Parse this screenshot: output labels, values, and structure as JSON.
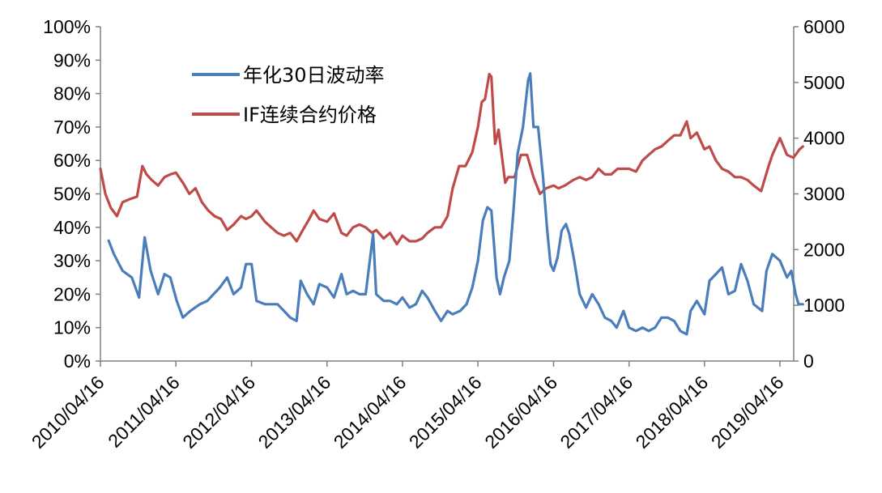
{
  "chart_data": {
    "type": "line",
    "title": "",
    "xlabel": "",
    "ylabel": "",
    "grid": false,
    "legend_position": "top-left",
    "x_ticks": [
      "2010/04/16",
      "2011/04/16",
      "2012/04/16",
      "2013/04/16",
      "2014/04/16",
      "2015/04/16",
      "2016/04/16",
      "2017/04/16",
      "2018/04/16",
      "2019/04/16"
    ],
    "y_left": {
      "range": [
        0,
        100
      ],
      "ticks": [
        "0%",
        "10%",
        "20%",
        "30%",
        "40%",
        "50%",
        "60%",
        "70%",
        "80%",
        "90%",
        "100%"
      ]
    },
    "y_right": {
      "range": [
        0,
        6000
      ],
      "ticks": [
        "0",
        "1000",
        "2000",
        "3000",
        "4000",
        "5000",
        "6000"
      ]
    },
    "series": [
      {
        "name": "年化30日波动率",
        "axis": "left",
        "color": "#4a7ebb",
        "points": [
          [
            "2010/05/26",
            36
          ],
          [
            "2010/06/20",
            32
          ],
          [
            "2010/08/01",
            27
          ],
          [
            "2010/09/15",
            25
          ],
          [
            "2010/10/20",
            19
          ],
          [
            "2010/11/16",
            37
          ],
          [
            "2010/12/15",
            27
          ],
          [
            "2011/01/20",
            20
          ],
          [
            "2011/02/20",
            26
          ],
          [
            "2011/03/20",
            25
          ],
          [
            "2011/04/20",
            18
          ],
          [
            "2011/05/20",
            13
          ],
          [
            "2011/06/25",
            15
          ],
          [
            "2011/08/10",
            17
          ],
          [
            "2011/09/15",
            18
          ],
          [
            "2011/10/15",
            20
          ],
          [
            "2011/11/15",
            22
          ],
          [
            "2011/12/20",
            25
          ],
          [
            "2012/01/20",
            20
          ],
          [
            "2012/02/25",
            22
          ],
          [
            "2012/03/20",
            29
          ],
          [
            "2012/04/16",
            29
          ],
          [
            "2012/05/10",
            18
          ],
          [
            "2012/06/20",
            17
          ],
          [
            "2012/08/20",
            17
          ],
          [
            "2012/09/20",
            15
          ],
          [
            "2012/10/20",
            13
          ],
          [
            "2012/11/20",
            12
          ],
          [
            "2012/12/10",
            24
          ],
          [
            "2013/01/10",
            20
          ],
          [
            "2013/02/10",
            17
          ],
          [
            "2013/03/10",
            23
          ],
          [
            "2013/04/16",
            22
          ],
          [
            "2013/05/20",
            19
          ],
          [
            "2013/06/25",
            26
          ],
          [
            "2013/07/20",
            20
          ],
          [
            "2013/08/20",
            21
          ],
          [
            "2013/09/20",
            20
          ],
          [
            "2013/10/20",
            20
          ],
          [
            "2013/11/15",
            33
          ],
          [
            "2013/11/25",
            38
          ],
          [
            "2013/12/10",
            20
          ],
          [
            "2014/01/15",
            18
          ],
          [
            "2014/02/15",
            18
          ],
          [
            "2014/03/20",
            17
          ],
          [
            "2014/04/16",
            19
          ],
          [
            "2014/05/20",
            16
          ],
          [
            "2014/06/20",
            17
          ],
          [
            "2014/07/20",
            21
          ],
          [
            "2014/08/15",
            19
          ],
          [
            "2014/09/20",
            15
          ],
          [
            "2014/10/20",
            12
          ],
          [
            "2014/11/20",
            15
          ],
          [
            "2014/12/15",
            14
          ],
          [
            "2015/01/20",
            15
          ],
          [
            "2015/02/20",
            17
          ],
          [
            "2015/03/20",
            22
          ],
          [
            "2015/04/16",
            30
          ],
          [
            "2015/05/10",
            42
          ],
          [
            "2015/06/01",
            46
          ],
          [
            "2015/06/20",
            45
          ],
          [
            "2015/07/15",
            25
          ],
          [
            "2015/08/01",
            20
          ],
          [
            "2015/08/20",
            25
          ],
          [
            "2015/09/15",
            30
          ],
          [
            "2015/10/05",
            45
          ],
          [
            "2015/10/25",
            62
          ],
          [
            "2015/11/20",
            70
          ],
          [
            "2015/12/15",
            84
          ],
          [
            "2015/12/25",
            86
          ],
          [
            "2016/01/10",
            70
          ],
          [
            "2016/02/01",
            70
          ],
          [
            "2016/02/25",
            55
          ],
          [
            "2016/03/15",
            40
          ],
          [
            "2016/04/01",
            29
          ],
          [
            "2016/04/16",
            27
          ],
          [
            "2016/05/05",
            31
          ],
          [
            "2016/05/25",
            39
          ],
          [
            "2016/06/15",
            41
          ],
          [
            "2016/07/01",
            38
          ],
          [
            "2016/07/25",
            30
          ],
          [
            "2016/08/20",
            20
          ],
          [
            "2016/09/20",
            16
          ],
          [
            "2016/10/20",
            20
          ],
          [
            "2016/11/20",
            17
          ],
          [
            "2016/12/20",
            13
          ],
          [
            "2017/01/20",
            12
          ],
          [
            "2017/02/15",
            10
          ],
          [
            "2017/03/20",
            15
          ],
          [
            "2017/04/16",
            10
          ],
          [
            "2017/05/20",
            9
          ],
          [
            "2017/06/20",
            10
          ],
          [
            "2017/07/20",
            9
          ],
          [
            "2017/08/20",
            10
          ],
          [
            "2017/09/20",
            13
          ],
          [
            "2017/10/20",
            13
          ],
          [
            "2017/11/20",
            12
          ],
          [
            "2017/12/20",
            9
          ],
          [
            "2018/01/20",
            8
          ],
          [
            "2018/02/08",
            15
          ],
          [
            "2018/03/10",
            18
          ],
          [
            "2018/04/16",
            14
          ],
          [
            "2018/05/10",
            24
          ],
          [
            "2018/06/10",
            26
          ],
          [
            "2018/07/10",
            28
          ],
          [
            "2018/08/10",
            20
          ],
          [
            "2018/09/10",
            21
          ],
          [
            "2018/10/10",
            29
          ],
          [
            "2018/11/10",
            24
          ],
          [
            "2018/12/10",
            17
          ],
          [
            "2019/01/20",
            15
          ],
          [
            "2019/02/10",
            27
          ],
          [
            "2019/03/10",
            32
          ],
          [
            "2019/04/16",
            30
          ],
          [
            "2019/05/20",
            25
          ],
          [
            "2019/06/10",
            27
          ],
          [
            "2019/07/01",
            20
          ],
          [
            "2019/07/15",
            17
          ],
          [
            "2019/08/05",
            17
          ]
        ]
      },
      {
        "name": "IF连续合约价格",
        "axis": "right",
        "color": "#be4b48",
        "points": [
          [
            "2010/04/16",
            3450
          ],
          [
            "2010/05/10",
            3000
          ],
          [
            "2010/06/05",
            2750
          ],
          [
            "2010/07/05",
            2600
          ],
          [
            "2010/08/01",
            2850
          ],
          [
            "2010/09/01",
            2900
          ],
          [
            "2010/10/10",
            2950
          ],
          [
            "2010/11/05",
            3500
          ],
          [
            "2010/11/25",
            3350
          ],
          [
            "2010/12/20",
            3250
          ],
          [
            "2011/01/20",
            3150
          ],
          [
            "2011/02/20",
            3300
          ],
          [
            "2011/03/20",
            3350
          ],
          [
            "2011/04/16",
            3380
          ],
          [
            "2011/05/20",
            3200
          ],
          [
            "2011/06/20",
            3000
          ],
          [
            "2011/07/20",
            3100
          ],
          [
            "2011/08/20",
            2850
          ],
          [
            "2011/09/20",
            2700
          ],
          [
            "2011/10/20",
            2600
          ],
          [
            "2011/11/20",
            2550
          ],
          [
            "2011/12/20",
            2350
          ],
          [
            "2012/01/20",
            2450
          ],
          [
            "2012/02/25",
            2600
          ],
          [
            "2012/03/20",
            2550
          ],
          [
            "2012/04/16",
            2600
          ],
          [
            "2012/05/10",
            2700
          ],
          [
            "2012/06/20",
            2500
          ],
          [
            "2012/07/20",
            2400
          ],
          [
            "2012/08/20",
            2300
          ],
          [
            "2012/09/20",
            2250
          ],
          [
            "2012/10/20",
            2300
          ],
          [
            "2012/11/20",
            2150
          ],
          [
            "2012/12/20",
            2350
          ],
          [
            "2013/01/20",
            2550
          ],
          [
            "2013/02/10",
            2700
          ],
          [
            "2013/03/10",
            2550
          ],
          [
            "2013/04/16",
            2500
          ],
          [
            "2013/05/20",
            2650
          ],
          [
            "2013/06/25",
            2300
          ],
          [
            "2013/07/20",
            2250
          ],
          [
            "2013/08/20",
            2400
          ],
          [
            "2013/09/20",
            2450
          ],
          [
            "2013/10/20",
            2400
          ],
          [
            "2013/11/20",
            2300
          ],
          [
            "2013/12/10",
            2350
          ],
          [
            "2014/01/15",
            2200
          ],
          [
            "2014/02/15",
            2300
          ],
          [
            "2014/03/20",
            2100
          ],
          [
            "2014/04/16",
            2250
          ],
          [
            "2014/05/20",
            2150
          ],
          [
            "2014/06/20",
            2150
          ],
          [
            "2014/07/20",
            2200
          ],
          [
            "2014/08/15",
            2300
          ],
          [
            "2014/09/20",
            2400
          ],
          [
            "2014/10/20",
            2400
          ],
          [
            "2014/11/20",
            2600
          ],
          [
            "2014/12/15",
            3100
          ],
          [
            "2015/01/15",
            3500
          ],
          [
            "2015/02/15",
            3500
          ],
          [
            "2015/03/20",
            3750
          ],
          [
            "2015/04/16",
            4200
          ],
          [
            "2015/05/05",
            4650
          ],
          [
            "2015/05/20",
            4700
          ],
          [
            "2015/06/10",
            5150
          ],
          [
            "2015/06/20",
            5100
          ],
          [
            "2015/07/08",
            3900
          ],
          [
            "2015/07/25",
            4150
          ],
          [
            "2015/08/26",
            3200
          ],
          [
            "2015/09/10",
            3300
          ],
          [
            "2015/10/10",
            3300
          ],
          [
            "2015/11/10",
            3700
          ],
          [
            "2015/12/10",
            3700
          ],
          [
            "2016/01/10",
            3300
          ],
          [
            "2016/02/10",
            3000
          ],
          [
            "2016/03/10",
            3100
          ],
          [
            "2016/04/16",
            3150
          ],
          [
            "2016/05/10",
            3100
          ],
          [
            "2016/06/10",
            3150
          ],
          [
            "2016/07/20",
            3250
          ],
          [
            "2016/08/20",
            3300
          ],
          [
            "2016/09/20",
            3250
          ],
          [
            "2016/10/20",
            3300
          ],
          [
            "2016/11/20",
            3450
          ],
          [
            "2016/12/20",
            3350
          ],
          [
            "2017/01/20",
            3350
          ],
          [
            "2017/02/20",
            3450
          ],
          [
            "2017/03/20",
            3450
          ],
          [
            "2017/04/16",
            3450
          ],
          [
            "2017/05/20",
            3400
          ],
          [
            "2017/06/20",
            3600
          ],
          [
            "2017/07/20",
            3700
          ],
          [
            "2017/08/20",
            3800
          ],
          [
            "2017/09/20",
            3850
          ],
          [
            "2017/10/20",
            3950
          ],
          [
            "2017/11/20",
            4050
          ],
          [
            "2017/12/20",
            4050
          ],
          [
            "2018/01/20",
            4300
          ],
          [
            "2018/02/08",
            4000
          ],
          [
            "2018/03/10",
            4100
          ],
          [
            "2018/04/16",
            3800
          ],
          [
            "2018/05/10",
            3850
          ],
          [
            "2018/06/10",
            3600
          ],
          [
            "2018/07/10",
            3450
          ],
          [
            "2018/08/10",
            3400
          ],
          [
            "2018/09/10",
            3300
          ],
          [
            "2018/10/10",
            3300
          ],
          [
            "2018/11/10",
            3250
          ],
          [
            "2018/12/10",
            3150
          ],
          [
            "2019/01/15",
            3050
          ],
          [
            "2019/02/20",
            3500
          ],
          [
            "2019/03/10",
            3700
          ],
          [
            "2019/04/16",
            4000
          ],
          [
            "2019/05/20",
            3700
          ],
          [
            "2019/06/20",
            3650
          ],
          [
            "2019/07/20",
            3800
          ],
          [
            "2019/08/05",
            3850
          ]
        ]
      }
    ]
  }
}
